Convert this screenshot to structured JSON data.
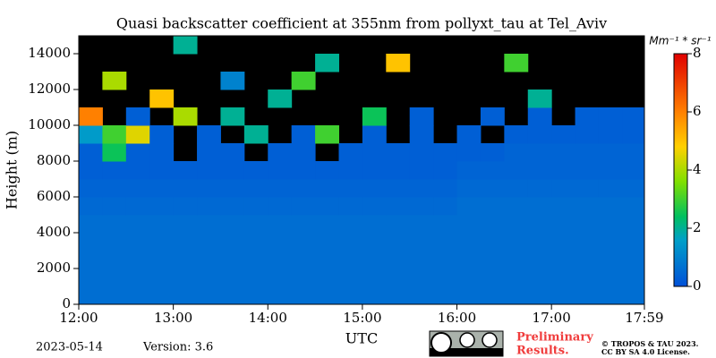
{
  "chart_data": {
    "type": "heatmap",
    "title": "Quasi backscatter coefficient at 355nm from pollyxt_tau at Tel_Aviv",
    "x_label": "UTC",
    "y_label": "Height (m)",
    "colorbar_label": "Mm⁻¹ * sr⁻¹",
    "xlim": [
      12,
      17.983
    ],
    "ylim": [
      0,
      15000
    ],
    "clim": [
      0,
      8
    ],
    "xticks": [
      {
        "value": 12,
        "label": "12:00"
      },
      {
        "value": 13,
        "label": "13:00"
      },
      {
        "value": 14,
        "label": "14:00"
      },
      {
        "value": 15,
        "label": "15:00"
      },
      {
        "value": 16,
        "label": "16:00"
      },
      {
        "value": 17,
        "label": "17:00"
      },
      {
        "value": 17.983,
        "label": "17:59"
      }
    ],
    "yticks": [
      0,
      2000,
      4000,
      6000,
      8000,
      10000,
      12000,
      14000
    ],
    "cticks": [
      0,
      2,
      4,
      6,
      8
    ],
    "x": [
      12,
      12.25,
      12.5,
      12.75,
      13,
      13.25,
      13.5,
      13.75,
      14,
      14.25,
      14.5,
      14.75,
      15,
      15.25,
      15.5,
      15.75,
      16,
      16.25,
      16.5,
      16.75,
      17,
      17.25,
      17.5,
      17.75
    ],
    "y": [
      0,
      1000,
      2000,
      3000,
      4000,
      5000,
      6000,
      7000,
      8000,
      9000,
      10000,
      11000,
      12000,
      13000,
      14000
    ],
    "values": [
      [
        0.6,
        0.6,
        0.6,
        0.6,
        0.6,
        0.6,
        0.6,
        0.6,
        0.6,
        0.6,
        0.6,
        0.6,
        0.6,
        0.6,
        0.6,
        0.6,
        0.6,
        0.6,
        0.6,
        0.6,
        0.6,
        0.6,
        0.6,
        0.6
      ],
      [
        0.6,
        0.6,
        0.6,
        0.6,
        0.6,
        0.6,
        0.6,
        0.6,
        0.6,
        0.6,
        0.6,
        0.6,
        0.6,
        0.6,
        0.6,
        0.6,
        0.6,
        0.6,
        0.6,
        0.6,
        0.6,
        0.6,
        0.6,
        0.6
      ],
      [
        0.6,
        0.6,
        0.6,
        0.6,
        0.6,
        0.6,
        0.6,
        0.6,
        0.6,
        0.6,
        0.6,
        0.6,
        0.6,
        0.6,
        0.6,
        0.6,
        0.6,
        0.6,
        0.6,
        0.6,
        0.6,
        0.6,
        0.6,
        0.6
      ],
      [
        0.6,
        0.6,
        0.6,
        0.6,
        0.6,
        0.6,
        0.6,
        0.6,
        0.6,
        0.6,
        0.6,
        0.6,
        0.6,
        0.6,
        0.6,
        0.6,
        0.6,
        0.6,
        0.6,
        0.6,
        0.6,
        0.6,
        0.6,
        0.6
      ],
      [
        0.6,
        0.6,
        0.6,
        0.6,
        0.6,
        0.6,
        0.6,
        0.6,
        0.6,
        0.6,
        0.6,
        0.6,
        0.6,
        0.6,
        0.6,
        0.6,
        0.6,
        0.6,
        0.6,
        0.6,
        0.6,
        0.6,
        0.6,
        0.6
      ],
      [
        0.5,
        0.5,
        0.5,
        0.5,
        0.5,
        0.5,
        0.5,
        0.5,
        0.5,
        0.5,
        0.5,
        0.5,
        0.5,
        0.5,
        0.5,
        0.5,
        0.6,
        0.6,
        0.6,
        0.6,
        0.6,
        0.6,
        0.6,
        0.6
      ],
      [
        0.4,
        0.4,
        0.4,
        0.4,
        0.4,
        0.4,
        0.4,
        0.4,
        0.4,
        0.4,
        0.4,
        0.4,
        0.4,
        0.4,
        0.4,
        0.4,
        0.5,
        0.5,
        0.5,
        0.5,
        0.5,
        0.5,
        0.5,
        0.5
      ],
      [
        0.3,
        0.3,
        0.3,
        0.3,
        0.3,
        0.3,
        0.3,
        0.3,
        0.3,
        0.3,
        0.3,
        0.3,
        0.3,
        0.3,
        0.3,
        0.3,
        0.4,
        0.4,
        0.4,
        0.4,
        0.4,
        0.4,
        0.4,
        0.4
      ],
      [
        0.3,
        2.5,
        0.3,
        0.3,
        null,
        0.3,
        0.3,
        null,
        0.3,
        0.3,
        null,
        0.3,
        0.3,
        0.3,
        0.3,
        0.3,
        0.3,
        0.3,
        0.4,
        0.4,
        0.4,
        0.4,
        0.4,
        0.4
      ],
      [
        1.5,
        3,
        4.5,
        0.3,
        null,
        0.3,
        null,
        2,
        null,
        0.3,
        3,
        null,
        0.3,
        null,
        0.3,
        null,
        0.3,
        null,
        0.3,
        0.3,
        0.3,
        0.3,
        0.3,
        0.3
      ],
      [
        6,
        null,
        0.3,
        null,
        4,
        null,
        2,
        null,
        null,
        null,
        null,
        null,
        2.5,
        null,
        0.3,
        null,
        null,
        0.3,
        null,
        0.3,
        null,
        0.3,
        0.3,
        0.3
      ],
      [
        null,
        null,
        null,
        5,
        null,
        null,
        null,
        null,
        2,
        null,
        null,
        null,
        null,
        null,
        null,
        null,
        null,
        null,
        null,
        2,
        null,
        null,
        null,
        null
      ],
      [
        null,
        4,
        null,
        null,
        null,
        null,
        1,
        null,
        null,
        3,
        null,
        null,
        null,
        null,
        null,
        null,
        null,
        null,
        null,
        null,
        null,
        null,
        null,
        null
      ],
      [
        null,
        null,
        null,
        null,
        null,
        null,
        null,
        null,
        null,
        null,
        2,
        null,
        null,
        5,
        null,
        null,
        null,
        null,
        3,
        null,
        null,
        null,
        null,
        null
      ],
      [
        null,
        null,
        null,
        null,
        2,
        null,
        null,
        null,
        null,
        null,
        null,
        null,
        null,
        null,
        null,
        null,
        null,
        null,
        null,
        null,
        null,
        null,
        null,
        null
      ]
    ]
  },
  "footer": {
    "date": "2023-05-14",
    "version": "Version: 3.6",
    "preliminary": [
      "Preliminary",
      "Results."
    ],
    "license": [
      "© TROPOS & TAU 2023.",
      "CC BY SA 4.0 License."
    ]
  }
}
